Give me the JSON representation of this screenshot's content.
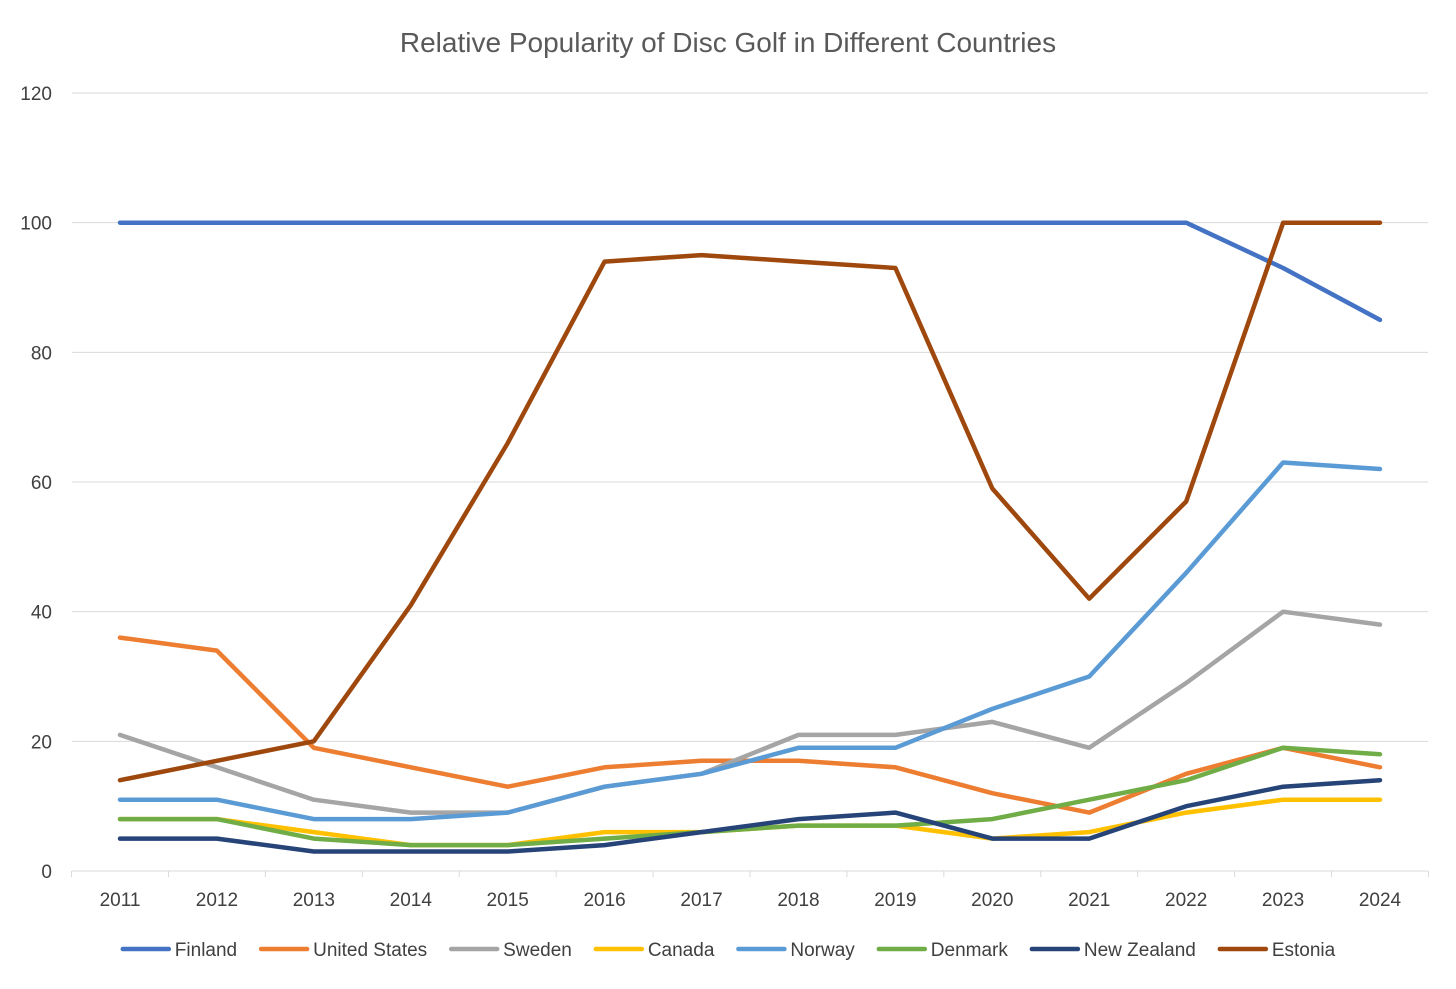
{
  "chart_data": {
    "type": "line",
    "title": "Relative Popularity of Disc Golf in Different Countries",
    "xlabel": "",
    "ylabel": "",
    "categories": [
      "2011",
      "2012",
      "2013",
      "2014",
      "2015",
      "2016",
      "2017",
      "2018",
      "2019",
      "2020",
      "2021",
      "2022",
      "2023",
      "2024"
    ],
    "ylim": [
      0,
      120
    ],
    "yticks": [
      0,
      20,
      40,
      60,
      80,
      100,
      120
    ],
    "grid": true,
    "legend_position": "bottom",
    "series": [
      {
        "name": "Finland",
        "color": "#4472C4",
        "values": [
          100,
          100,
          100,
          100,
          100,
          100,
          100,
          100,
          100,
          100,
          100,
          100,
          93,
          85
        ]
      },
      {
        "name": "United States",
        "color": "#ED7D31",
        "values": [
          36,
          34,
          19,
          16,
          13,
          16,
          17,
          17,
          16,
          12,
          9,
          15,
          19,
          16
        ]
      },
      {
        "name": "Sweden",
        "color": "#A5A5A5",
        "values": [
          21,
          16,
          11,
          9,
          9,
          13,
          15,
          21,
          21,
          23,
          19,
          29,
          40,
          38
        ]
      },
      {
        "name": "Canada",
        "color": "#FFC000",
        "values": [
          8,
          8,
          6,
          4,
          4,
          6,
          6,
          7,
          7,
          5,
          6,
          9,
          11,
          11
        ]
      },
      {
        "name": "Norway",
        "color": "#5B9BD5",
        "values": [
          11,
          11,
          8,
          8,
          9,
          13,
          15,
          19,
          19,
          25,
          30,
          46,
          63,
          62
        ]
      },
      {
        "name": "Denmark",
        "color": "#70AD47",
        "values": [
          8,
          8,
          5,
          4,
          4,
          5,
          6,
          7,
          7,
          8,
          11,
          14,
          19,
          18
        ]
      },
      {
        "name": "New Zealand",
        "color": "#264478",
        "values": [
          5,
          5,
          3,
          3,
          3,
          4,
          6,
          8,
          9,
          5,
          5,
          10,
          13,
          14
        ]
      },
      {
        "name": "Estonia",
        "color": "#9E480E",
        "values": [
          14,
          17,
          20,
          41,
          66,
          94,
          95,
          94,
          93,
          59,
          42,
          57,
          100,
          100
        ]
      }
    ]
  }
}
